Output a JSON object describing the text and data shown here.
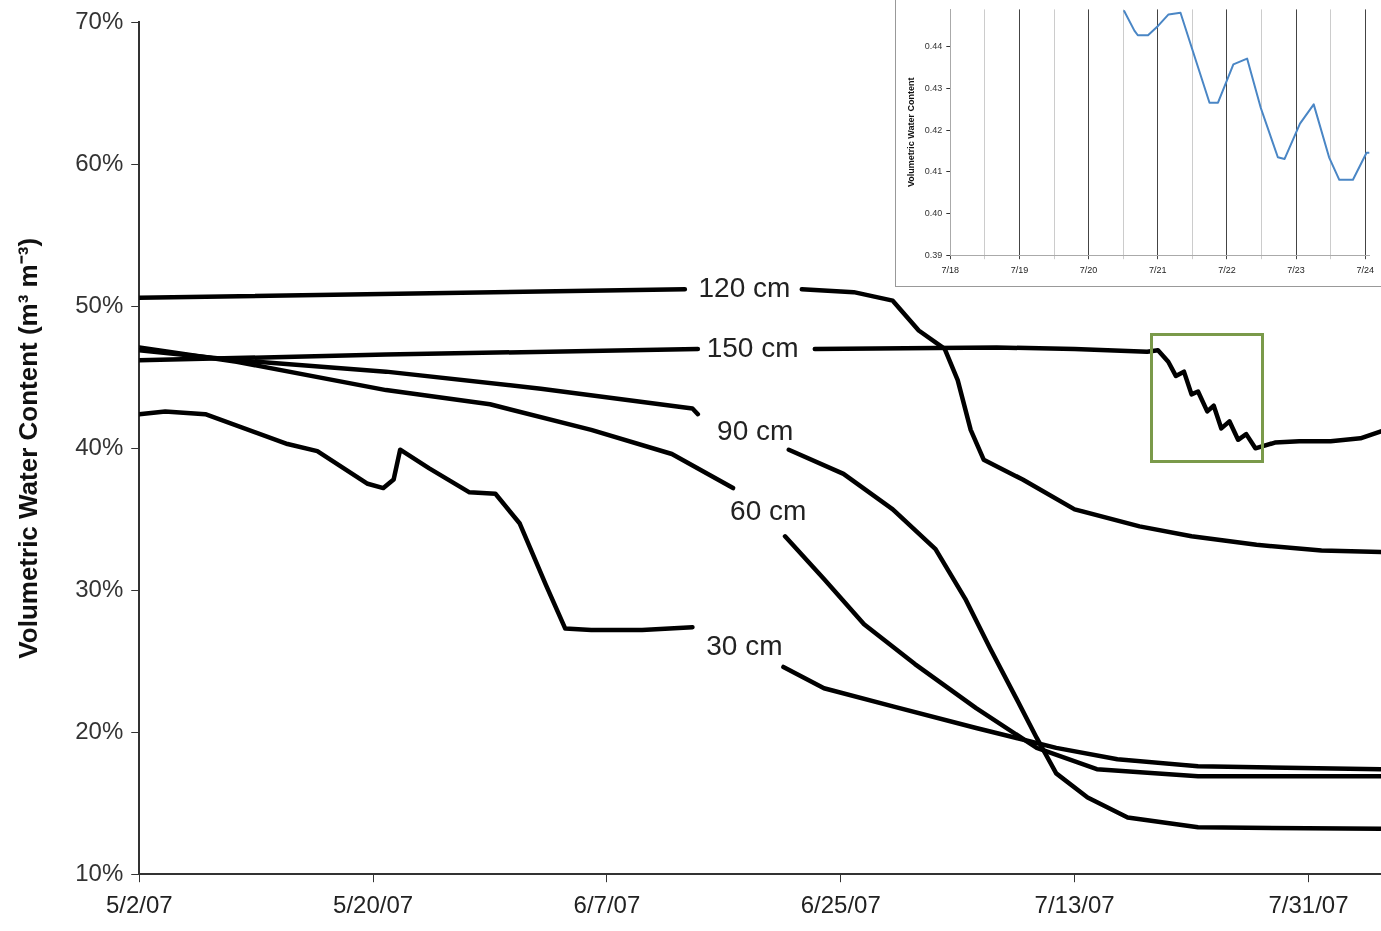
{
  "chart_data": [
    {
      "type": "line",
      "ylabel": "Volumetric Water Content (m³ m⁻³)",
      "marker": "none",
      "grid": false,
      "xlim": [
        "--05-02",
        "--08-05T14:00"
      ],
      "xticks": [
        {
          "value": "--05-02",
          "label": "5/2/07"
        },
        {
          "value": "--05-20",
          "label": "5/20/07"
        },
        {
          "value": "--06-07",
          "label": "6/7/07"
        },
        {
          "value": "--06-25",
          "label": "6/25/07"
        },
        {
          "value": "--07-13",
          "label": "7/13/07"
        },
        {
          "value": "--07-31",
          "label": "7/31/07"
        }
      ],
      "ylim": [
        10,
        70
      ],
      "yticks": [
        {
          "value": 10,
          "label": "10%"
        },
        {
          "value": 20,
          "label": "20%"
        },
        {
          "value": 30,
          "label": "30%"
        },
        {
          "value": 40,
          "label": "40%"
        },
        {
          "value": 50,
          "label": "50%"
        },
        {
          "value": 60,
          "label": "60%"
        },
        {
          "value": 70,
          "label": "70%"
        }
      ],
      "series": [
        {
          "name": "120 cm",
          "color": "#000000",
          "x": [
            "--05-02",
            "--06-13",
            "--06-17T14:00",
            "--06-22",
            "--06-26",
            "--06-29",
            "--07-01",
            "--07-03",
            "--07-04",
            "--07-05",
            "--07-06",
            "--07-09",
            "--07-13",
            "--07-18",
            "--07-22",
            "--07-27",
            "--08-01",
            "--08-05T14:00"
          ],
          "values": [
            50.6,
            51.2,
            null,
            51.2,
            51.0,
            50.4,
            48.3,
            47.0,
            44.8,
            41.3,
            39.2,
            37.8,
            35.7,
            34.5,
            33.8,
            33.2,
            32.8,
            32.7
          ]
        },
        {
          "name": "150 cm",
          "color": "#000000",
          "x": [
            "--05-02",
            "--05-21",
            "--06-14",
            "--06-18T05:00",
            "--06-23",
            "--07-07",
            "--07-13",
            "--07-18T14:00",
            "--07-19T10:00",
            "--07-20T05:00",
            "--07-20T19:00",
            "--07-21T10:00",
            "--07-22",
            "--07-22T12:00",
            "--07-23T05:00",
            "--07-23T17:00",
            "--07-24T07:00",
            "--07-24T22:00",
            "--07-25T14:00",
            "--07-26T05:00",
            "--07-26T22:00",
            "--07-28T10:00",
            "--07-30T07:00",
            "--08-01T17:00",
            "--08-04",
            "--08-05T14:00"
          ],
          "values": [
            46.2,
            46.6,
            47.0,
            null,
            47.0,
            47.1,
            47.0,
            46.8,
            46.9,
            46.1,
            45.1,
            45.4,
            43.8,
            44.0,
            42.6,
            43.0,
            41.4,
            41.9,
            40.6,
            41.0,
            40.0,
            40.4,
            40.5,
            40.5,
            40.7,
            41.2
          ]
        },
        {
          "name": "90 cm",
          "color": "#000000",
          "x": [
            "--05-02",
            "--05-09T12:00",
            "--05-21",
            "--06-01T22:00",
            "--06-13T14:00",
            "--06-14",
            "--06-18T10:00",
            "--06-21",
            "--06-25T05:00",
            "--06-29",
            "--07-02T07:00",
            "--07-04T14:00",
            "--07-06T12:00",
            "--07-08T12:00",
            "--07-10T02:00",
            "--07-11T14:00",
            "--07-14",
            "--07-17T02:00",
            "--07-22T12:00",
            "--08-05T14:00"
          ],
          "values": [
            46.9,
            46.2,
            45.4,
            44.2,
            42.8,
            42.4,
            null,
            39.9,
            38.2,
            35.7,
            32.9,
            29.4,
            25.9,
            22.4,
            19.6,
            17.1,
            15.4,
            14.0,
            13.3,
            13.2
          ]
        },
        {
          "name": "60 cm",
          "color": "#000000",
          "x": [
            "--05-02",
            "--05-09T12:00",
            "--05-21",
            "--05-29",
            "--06-05T19:00",
            "--06-12",
            "--06-16T17:00",
            "--06-19T10:00",
            "--06-20T17:00",
            "--06-23T17:00",
            "--06-26T19:00",
            "--06-30T17:00",
            "--07-05T10:00",
            "--07-10T02:00",
            "--07-14T17:00",
            "--07-22T12:00",
            "--08-05T14:00"
          ],
          "values": [
            47.1,
            46.1,
            44.1,
            43.1,
            41.3,
            39.6,
            37.2,
            null,
            33.8,
            30.8,
            27.6,
            24.8,
            21.7,
            18.9,
            17.4,
            16.9,
            16.9
          ]
        },
        {
          "name": "30 cm",
          "color": "#000000",
          "x": [
            "--05-02",
            "--05-04",
            "--05-07T02:00",
            "--05-13T10:00",
            "--05-15T17:00",
            "--05-19T14:00",
            "--05-20T19:00",
            "--05-21T14:00",
            "--05-22T02:00",
            "--05-24T07:00",
            "--05-27T10:00",
            "--05-29T10:00",
            "--05-31T07:00",
            "--06-02T07:00",
            "--06-03T19:00",
            "--06-05T19:00",
            "--06-09T17:00",
            "--06-13T14:00",
            "--06-17T14:00",
            "--06-20T14:00",
            "--06-23T17:00",
            "--06-29T02:00",
            "--07-05T10:00",
            "--07-11T14:00",
            "--07-16T07:00",
            "--07-22T12:00",
            "--08-05T14:00"
          ],
          "values": [
            42.4,
            42.6,
            42.4,
            40.3,
            39.8,
            37.5,
            37.2,
            37.8,
            39.9,
            38.6,
            36.9,
            36.8,
            34.7,
            30.4,
            27.3,
            27.2,
            27.2,
            27.4,
            null,
            24.6,
            23.1,
            21.8,
            20.3,
            18.9,
            18.1,
            17.6,
            17.4
          ]
        }
      ]
    },
    {
      "type": "line",
      "ylabel": "Volumetric Water Content",
      "marker": "none",
      "grid": "x",
      "xlim": [
        "--07-18",
        "--07-24T01:25"
      ],
      "xticks": [
        {
          "value": "--07-18",
          "label": "7/18"
        },
        {
          "value": "--07-18T12:00",
          "label": null
        },
        {
          "value": "--07-19",
          "label": "7/19"
        },
        {
          "value": "--07-19T12:00",
          "label": null
        },
        {
          "value": "--07-20",
          "label": "7/20"
        },
        {
          "value": "--07-20T12:00",
          "label": null
        },
        {
          "value": "--07-21",
          "label": "7/21"
        },
        {
          "value": "--07-21T12:00",
          "label": null
        },
        {
          "value": "--07-22",
          "label": "7/22"
        },
        {
          "value": "--07-22T12:00",
          "label": null
        },
        {
          "value": "--07-23",
          "label": "7/23"
        },
        {
          "value": "--07-23T12:00",
          "label": null
        },
        {
          "value": "--07-24",
          "label": "7/24"
        }
      ],
      "ylim": [
        0.39,
        0.449
      ],
      "yticks": [
        {
          "value": 0.39,
          "label": "0.39"
        },
        {
          "value": 0.4,
          "label": "0.40"
        },
        {
          "value": 0.41,
          "label": "0.41"
        },
        {
          "value": 0.42,
          "label": "0.42"
        },
        {
          "value": 0.43,
          "label": "0.43"
        },
        {
          "value": 0.44,
          "label": "0.44"
        }
      ],
      "series": [
        {
          "color": "#4a86c5",
          "x": [
            "--07-20T12:20",
            "--07-20T15:53",
            "--07-20T17:04",
            "--07-20T20:37",
            "--07-21T00:10",
            "--07-21T03:44",
            "--07-21T07:53",
            "--07-21T12:01",
            "--07-21T17:57",
            "--07-21T20:54",
            "--07-22T02:14",
            "--07-22T07:00",
            "--07-22T11:44",
            "--07-22T17:40",
            "--07-22T20:01",
            "--07-23T01:21",
            "--07-23T06:07",
            "--07-23T11:27",
            "--07-23T15:00",
            "--07-23T19:44",
            "--07-24T00:27",
            "--07-24T01:25"
          ],
          "values": [
            0.4486,
            0.4439,
            0.4428,
            0.4428,
            0.4451,
            0.4478,
            0.4482,
            0.4393,
            0.4266,
            0.4266,
            0.4358,
            0.4372,
            0.4254,
            0.4135,
            0.4131,
            0.4216,
            0.4262,
            0.4135,
            0.4081,
            0.4081,
            0.4146,
            0.4146
          ]
        }
      ]
    }
  ]
}
